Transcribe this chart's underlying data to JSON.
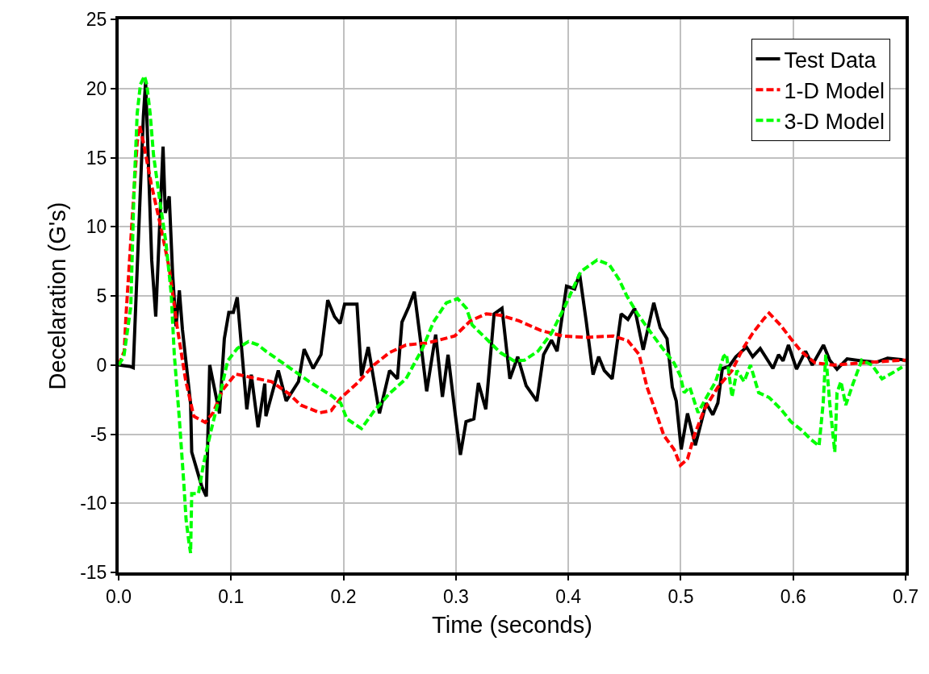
{
  "chart_data": {
    "type": "line",
    "xlabel": "Time (seconds)",
    "ylabel": "Decelaration (G's)",
    "xlim": [
      0,
      0.7
    ],
    "xticks": [
      {
        "value": 0,
        "label": "0.0"
      },
      0.1,
      0.2,
      0.3,
      0.4,
      0.5,
      0.6,
      0.7
    ],
    "ylim": [
      -15,
      25
    ],
    "yticks": [
      -15,
      -10,
      -5,
      0,
      5,
      10,
      15,
      20,
      25
    ],
    "grid": true,
    "legend": "top right",
    "marker": "none",
    "series": [
      {
        "name": "Test Data",
        "color": "#000000",
        "line_style": "solid",
        "x": [
          0,
          0.01,
          0.013,
          0.017,
          0.022,
          0.024,
          0.0294,
          0.033,
          0.0395,
          0.0415,
          0.045,
          0.048,
          0.051,
          0.054,
          0.0567,
          0.064,
          0.065,
          0.074,
          0.078,
          0.081,
          0.0897,
          0.094,
          0.098,
          0.102,
          0.1055,
          0.114,
          0.118,
          0.124,
          0.13,
          0.131,
          0.142,
          0.149,
          0.16,
          0.165,
          0.173,
          0.18,
          0.186,
          0.192,
          0.197,
          0.201,
          0.212,
          0.216,
          0.222,
          0.232,
          0.241,
          0.248,
          0.252,
          0.258,
          0.263,
          0.268,
          0.274,
          0.282,
          0.288,
          0.293,
          0.299,
          0.304,
          0.309,
          0.316,
          0.32,
          0.3266,
          0.334,
          0.341,
          0.348,
          0.355,
          0.3625,
          0.372,
          0.378,
          0.385,
          0.39,
          0.3984,
          0.4056,
          0.41,
          0.416,
          0.422,
          0.427,
          0.432,
          0.439,
          0.447,
          0.453,
          0.459,
          0.4666,
          0.476,
          0.4817,
          0.4878,
          0.4925,
          0.496,
          0.5004,
          0.506,
          0.513,
          0.5226,
          0.5285,
          0.533,
          0.537,
          0.543,
          0.549,
          0.5585,
          0.564,
          0.5707,
          0.582,
          0.587,
          0.591,
          0.5958,
          0.603,
          0.611,
          0.617,
          0.627,
          0.6325,
          0.639,
          0.648,
          0.66,
          0.674,
          0.684,
          0.696,
          0.7
        ],
        "values": [
          0,
          -0.1,
          -0.2,
          8,
          18,
          20.5,
          7.6,
          3.5,
          15.8,
          11,
          12.2,
          6.6,
          2.8,
          5.4,
          2.6,
          -2.8,
          -6.3,
          -8.8,
          -9.5,
          0,
          -3.5,
          1.9,
          3.8,
          3.8,
          4.9,
          -3.2,
          -0.7,
          -4.5,
          -1.35,
          -3.7,
          -0.4,
          -2.6,
          -1.2,
          1.15,
          -0.25,
          0.75,
          4.7,
          3.5,
          3,
          4.4,
          4.4,
          -0.8,
          1.3,
          -3.5,
          -0.4,
          -1,
          3.1,
          4.2,
          5.3,
          2.1,
          -1.9,
          2.2,
          -2.3,
          0.75,
          -3.3,
          -6.5,
          -4.1,
          -3.9,
          -1.3,
          -3.2,
          3.7,
          4.1,
          -1,
          0.6,
          -1.5,
          -2.6,
          0.75,
          1.8,
          1,
          5.7,
          5.5,
          6.6,
          3.1,
          -0.7,
          0.6,
          -0.4,
          -1,
          3.7,
          3.3,
          4.1,
          1.1,
          4.5,
          2.7,
          1.9,
          -1.6,
          -2.6,
          -6.1,
          -3.5,
          -5.8,
          -2.75,
          -3.6,
          -2.75,
          -0.25,
          -0.1,
          0.6,
          1.3,
          0.6,
          1.2,
          -0.25,
          0.75,
          0.3,
          1.45,
          -0.3,
          1,
          0,
          1.45,
          0.35,
          -0.3,
          0.45,
          0.3,
          0.2,
          0.5,
          0.4,
          0.3
        ]
      },
      {
        "name": "1-D Model",
        "color": "#ff0000",
        "line_style": "dashed",
        "x": [
          0,
          0.005,
          0.0065,
          0.012,
          0.0165,
          0.0187,
          0.022,
          0.029,
          0.038,
          0.045,
          0.052,
          0.0596,
          0.0668,
          0.077,
          0.084,
          0.0926,
          0.104,
          0.118,
          0.136,
          0.151,
          0.162,
          0.179,
          0.189,
          0.198,
          0.2125,
          0.227,
          0.241,
          0.2556,
          0.275,
          0.299,
          0.313,
          0.327,
          0.3395,
          0.356,
          0.3755,
          0.3948,
          0.417,
          0.44,
          0.453,
          0.463,
          0.47,
          0.477,
          0.485,
          0.494,
          0.4997,
          0.506,
          0.512,
          0.521,
          0.533,
          0.5456,
          0.555,
          0.564,
          0.574,
          0.5786,
          0.5886,
          0.598,
          0.607,
          0.6195,
          0.636,
          0.66,
          0.696,
          0.7
        ],
        "values": [
          0,
          1,
          3.5,
          10.5,
          16.1,
          17.3,
          16.1,
          13.1,
          9.8,
          7,
          2.8,
          -1.1,
          -3.7,
          -4.15,
          -3.45,
          -1.8,
          -0.65,
          -0.9,
          -1.2,
          -2.05,
          -2.9,
          -3.45,
          -3.3,
          -2.35,
          -1.3,
          0,
          0.9,
          1.45,
          1.6,
          2.1,
          3.2,
          3.7,
          3.6,
          3.2,
          2.5,
          2.1,
          2,
          2.1,
          1.75,
          0.75,
          -1.6,
          -3.2,
          -5.1,
          -6.1,
          -7.25,
          -6.8,
          -5.1,
          -3.2,
          -1.6,
          -0.4,
          1.15,
          2.3,
          3.35,
          3.75,
          2.9,
          1.9,
          1,
          0.15,
          0,
          0.15,
          0.35,
          0.35
        ]
      },
      {
        "name": "3-D Model",
        "color": "#00ff00",
        "line_style": "dashed",
        "x": [
          0,
          0.0046,
          0.0108,
          0.0136,
          0.0165,
          0.0194,
          0.023,
          0.025,
          0.028,
          0.031,
          0.0366,
          0.042,
          0.0467,
          0.0495,
          0.054,
          0.058,
          0.06,
          0.0625,
          0.064,
          0.065,
          0.071,
          0.0754,
          0.0826,
          0.0897,
          0.097,
          0.1055,
          0.1156,
          0.124,
          0.131,
          0.153,
          0.1695,
          0.189,
          0.1975,
          0.203,
          0.216,
          0.227,
          0.241,
          0.2556,
          0.27,
          0.28,
          0.2915,
          0.3015,
          0.3094,
          0.3144,
          0.327,
          0.3395,
          0.3517,
          0.361,
          0.373,
          0.385,
          0.397,
          0.409,
          0.411,
          0.4257,
          0.4365,
          0.445,
          0.452,
          0.4616,
          0.4738,
          0.483,
          0.494,
          0.4997,
          0.503,
          0.508,
          0.512,
          0.5154,
          0.521,
          0.531,
          0.538,
          0.5406,
          0.5456,
          0.55,
          0.5563,
          0.562,
          0.5693,
          0.5786,
          0.5886,
          0.598,
          0.6073,
          0.616,
          0.623,
          0.6267,
          0.629,
          0.6325,
          0.637,
          0.639,
          0.6425,
          0.6468,
          0.653,
          0.661,
          0.67,
          0.679,
          0.6877,
          0.697
        ],
        "values": [
          0,
          0.6,
          4.2,
          12.4,
          18.2,
          20.3,
          20.9,
          20.3,
          18.2,
          15.2,
          11.9,
          8.9,
          5.2,
          0.75,
          -3.9,
          -8.6,
          -11.2,
          -12.8,
          -13.6,
          -9.3,
          -9.3,
          -7.2,
          -4.6,
          -2.3,
          0.3,
          1.2,
          1.7,
          1.45,
          1,
          -0.25,
          -1.2,
          -2.2,
          -2.75,
          -3.9,
          -4.6,
          -3.35,
          -2.05,
          -1,
          1.15,
          3.1,
          4.5,
          4.8,
          4.1,
          2.9,
          1.9,
          0.9,
          0.3,
          0.35,
          1,
          2.3,
          4.25,
          6.4,
          6.75,
          7.6,
          7.25,
          6.2,
          5,
          3.7,
          2.3,
          1.3,
          0.15,
          -0.8,
          -2,
          -1.6,
          -2.6,
          -3.45,
          -2.6,
          -1.2,
          0.6,
          0.8,
          -2.3,
          -0.4,
          -1.2,
          0,
          -2,
          -2.35,
          -3.15,
          -4.1,
          -4.7,
          -5.4,
          -5.85,
          -2.75,
          0.75,
          -2.75,
          -6.3,
          -2,
          -1.2,
          -2.9,
          -1.4,
          0.35,
          0,
          -1,
          -0.6,
          -0.15
        ]
      }
    ]
  }
}
